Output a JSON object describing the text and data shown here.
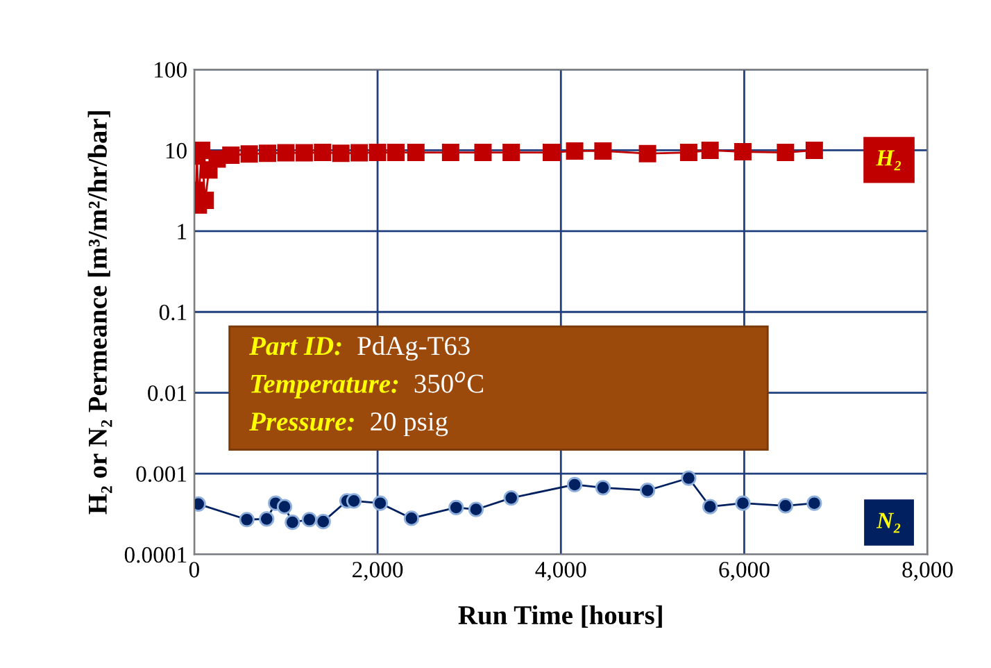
{
  "chart_data": {
    "type": "line",
    "xlabel": "Run Time [hours]",
    "ylabel": "H₂ or N₂ Permeance [m³/m²/hr/bar]",
    "log": "y",
    "xlim": [
      0,
      8000
    ],
    "xticks": [
      0,
      {
        "value": 2000,
        "label": "2,000"
      },
      {
        "value": 4000,
        "label": "4,000"
      },
      {
        "value": 6000,
        "label": "6,000"
      },
      {
        "value": 8000,
        "label": "8,000"
      }
    ],
    "ylim": [
      0.0001,
      100
    ],
    "yticks": [
      0.0001,
      0.001,
      0.01,
      0.1,
      1,
      10,
      100
    ],
    "grid": true,
    "line_style": "solid",
    "series": [
      {
        "name": "H₂",
        "color": "#c00000",
        "marker": "square",
        "x": [
          20,
          30,
          45,
          80,
          120,
          160,
          250,
          400,
          600,
          800,
          1000,
          1200,
          1400,
          1600,
          1800,
          2000,
          2200,
          2418,
          2797,
          3150,
          3458,
          3896,
          4150,
          4459,
          4945,
          5394,
          5627,
          5985,
          6450,
          6764
        ],
        "values": [
          3.2,
          8.5,
          2.1,
          10,
          2.4,
          5.7,
          7.8,
          8.7,
          9.0,
          9.2,
          9.3,
          9.3,
          9.4,
          9.2,
          9.3,
          9.4,
          9.4,
          9.4,
          9.4,
          9.4,
          9.4,
          9.4,
          9.8,
          9.8,
          9.1,
          9.4,
          10.0,
          9.6,
          9.4,
          10.0
        ]
      },
      {
        "name": "N₂",
        "color": "#002060",
        "marker": "circle",
        "x": [
          44,
          574,
          790,
          888,
          985,
          1071,
          1256,
          1407,
          1667,
          1742,
          2029,
          2370,
          2857,
          3074,
          3458,
          4150,
          4459,
          4945,
          5394,
          5627,
          5985,
          6450,
          6764
        ],
        "values": [
          0.00042,
          0.00027,
          0.000275,
          0.00043,
          0.00039,
          0.00025,
          0.00027,
          0.000255,
          0.00046,
          0.00046,
          0.00043,
          0.00028,
          0.00038,
          0.00036,
          0.0005,
          0.00073,
          0.00067,
          0.00062,
          0.00088,
          0.00039,
          0.00043,
          0.0004,
          0.00043
        ]
      }
    ],
    "annotations": [
      "Part ID:  PdAg-T63",
      "Temperature:  350$^{o}$C",
      "Pressure:  20 psig"
    ]
  }
}
